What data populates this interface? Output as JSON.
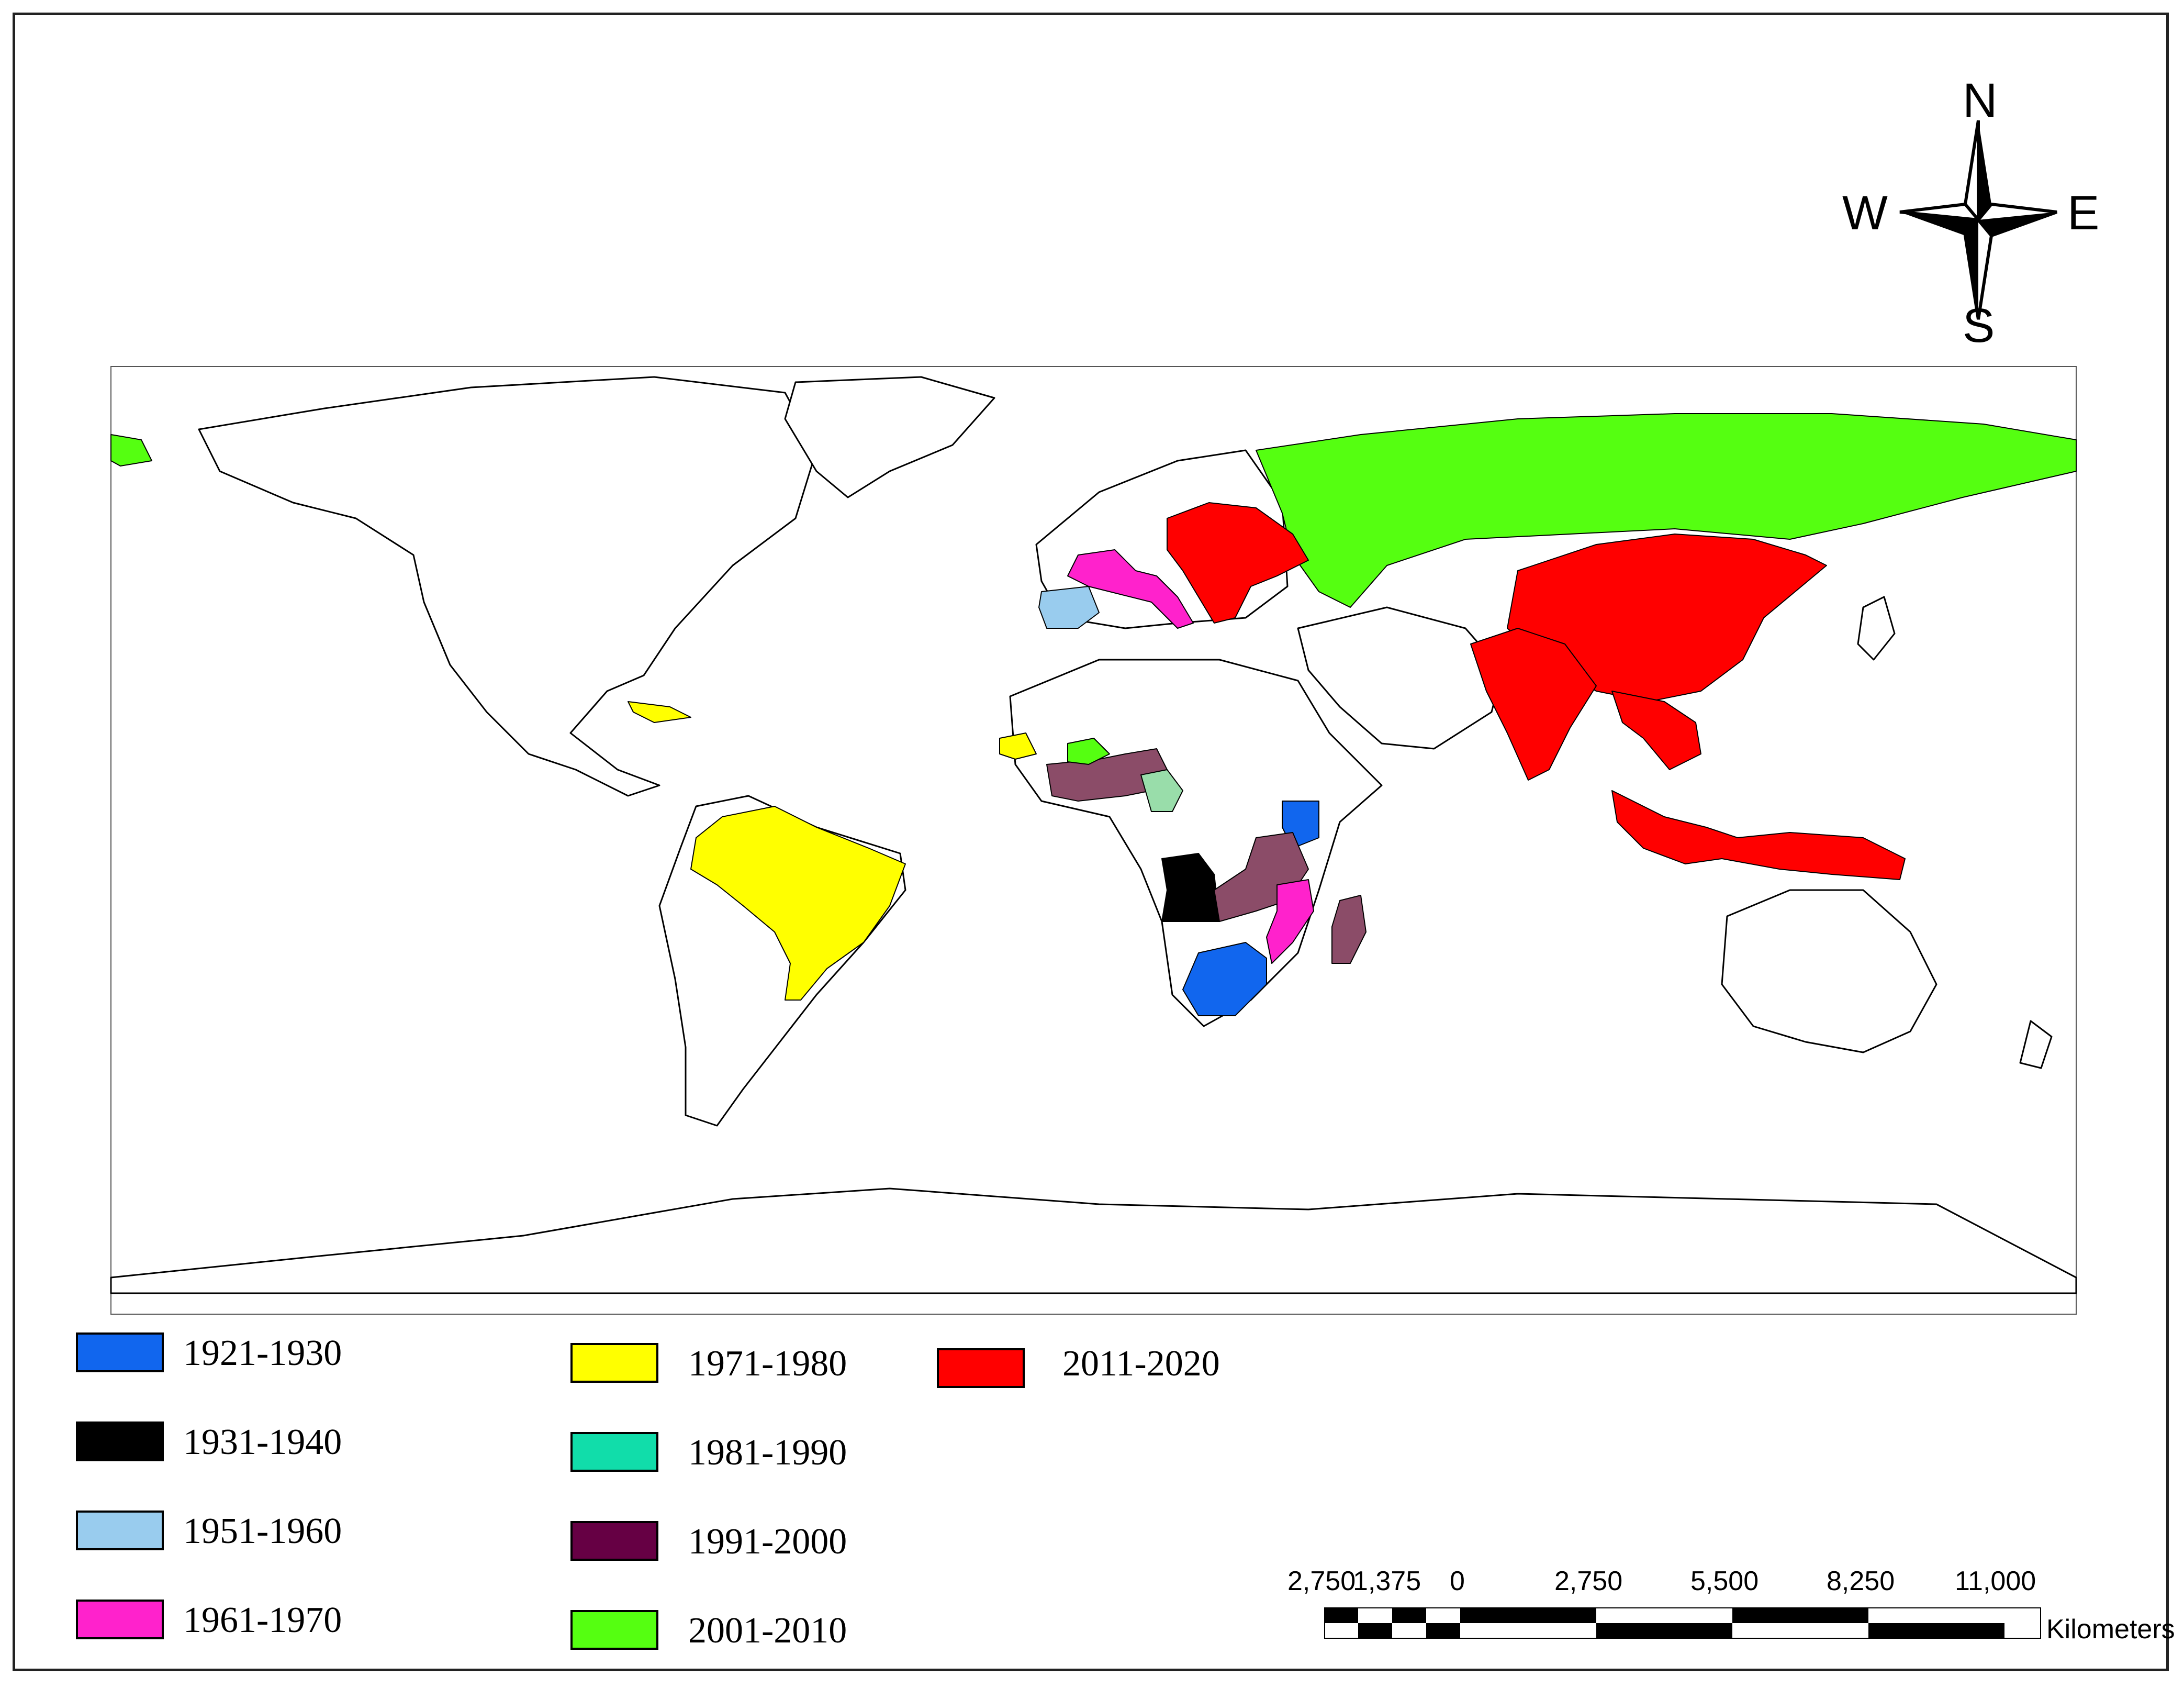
{
  "legend": {
    "items": [
      {
        "label": "1921-1930",
        "color": "#1166ee"
      },
      {
        "label": "1931-1940",
        "color": "#000000"
      },
      {
        "label": "1951-1960",
        "color": "#99ccee"
      },
      {
        "label": "1961-1970",
        "color": "#ff22cc"
      },
      {
        "label": "1971-1980",
        "color": "#ffff00"
      },
      {
        "label": "1981-1990",
        "color": "#11ddaa"
      },
      {
        "label": "1991-2000",
        "color": "#660044"
      },
      {
        "label": "2001-2010",
        "color": "#55ff11"
      },
      {
        "label": "2011-2020",
        "color": "#ff0000"
      }
    ]
  },
  "scale_bar": {
    "labels": [
      "2,750",
      "1,375",
      "0",
      "2,750",
      "5,500",
      "8,250",
      "11,000"
    ],
    "unit": "Kilometers"
  },
  "compass": {
    "north": "N",
    "south": "S",
    "east": "E",
    "west": "W"
  },
  "regions": [
    {
      "name": "Russia",
      "color": "#55ff11"
    },
    {
      "name": "Alaska tip",
      "color": "#55ff11"
    },
    {
      "name": "China",
      "color": "#ff0000"
    },
    {
      "name": "India",
      "color": "#ff0000"
    },
    {
      "name": "Eastern Europe",
      "color": "#ff0000"
    },
    {
      "name": "Southeast Asia",
      "color": "#ff0000"
    },
    {
      "name": "Indonesia & Papua",
      "color": "#ff0000"
    },
    {
      "name": "France & Italy",
      "color": "#ff22cc"
    },
    {
      "name": "Iberia",
      "color": "#99ccee"
    },
    {
      "name": "Brazil",
      "color": "#ffff00"
    },
    {
      "name": "Cuba",
      "color": "#ffff00"
    },
    {
      "name": "Senegal",
      "color": "#ffff00"
    },
    {
      "name": "West Africa coast",
      "color": "#8b4c68"
    },
    {
      "name": "Mali",
      "color": "#55ff11"
    },
    {
      "name": "Cameroon",
      "color": "#99ddaa"
    },
    {
      "name": "Angola",
      "color": "#000000"
    },
    {
      "name": "Kenya",
      "color": "#1166ee"
    },
    {
      "name": "South Africa",
      "color": "#1166ee"
    },
    {
      "name": "Tanzania & Zambia",
      "color": "#8b4c68"
    },
    {
      "name": "Madagascar",
      "color": "#8b4c68"
    },
    {
      "name": "Mozambique & Malawi",
      "color": "#ff22cc"
    }
  ]
}
